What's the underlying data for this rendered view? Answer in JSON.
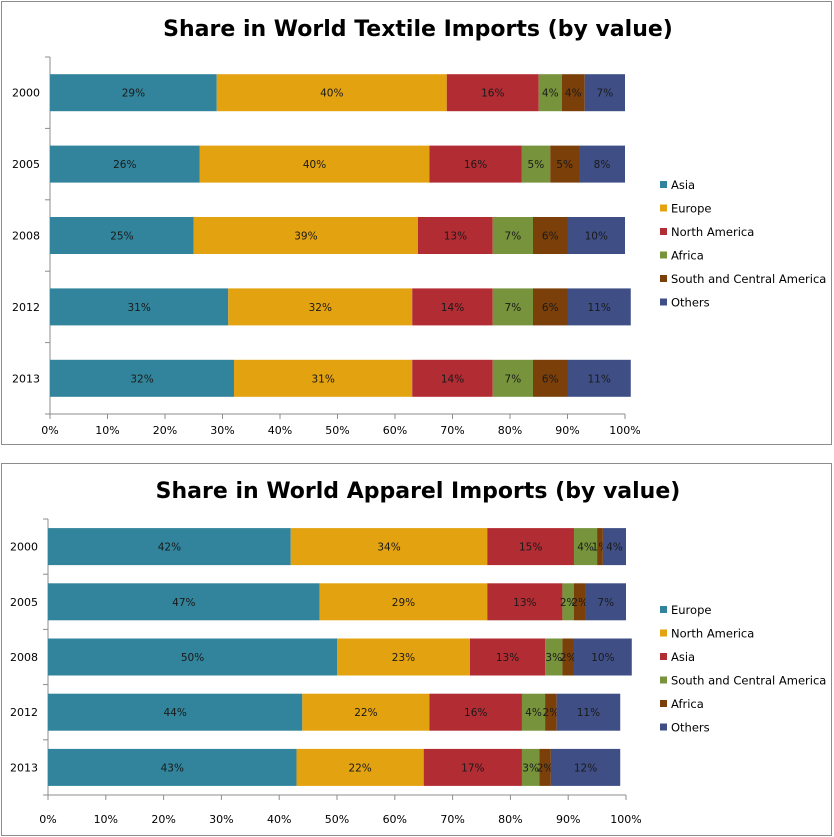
{
  "colors": {
    "teal": "#31849b",
    "gold": "#e3a20f",
    "red": "#b22c33",
    "green": "#77933c",
    "brown": "#7b3f0a",
    "navy": "#3f4f86"
  },
  "chart_data": [
    {
      "type": "bar",
      "orientation": "horizontal",
      "stacked": true,
      "title": "Share in World Textile Imports (by value)",
      "categories": [
        "2000",
        "2005",
        "2008",
        "2012",
        "2013"
      ],
      "xlim": [
        0,
        100
      ],
      "x_ticks": [
        "0%",
        "10%",
        "20%",
        "30%",
        "40%",
        "50%",
        "60%",
        "70%",
        "80%",
        "90%",
        "100%"
      ],
      "legend_position": "right",
      "series": [
        {
          "name": "Asia",
          "color": "#31849b",
          "values": [
            29,
            26,
            25,
            31,
            32
          ],
          "labels": [
            "29%",
            "26%",
            "25%",
            "31%",
            "32%"
          ]
        },
        {
          "name": "Europe",
          "color": "#e3a20f",
          "values": [
            40,
            40,
            39,
            32,
            31
          ],
          "labels": [
            "40%",
            "40%",
            "39%",
            "32%",
            "31%"
          ]
        },
        {
          "name": "North America",
          "color": "#b22c33",
          "values": [
            16,
            16,
            13,
            14,
            14
          ],
          "labels": [
            "16%",
            "16%",
            "13%",
            "14%",
            "14%"
          ]
        },
        {
          "name": "Africa",
          "color": "#77933c",
          "values": [
            4,
            5,
            7,
            7,
            7
          ],
          "labels": [
            "4%",
            "5%",
            "7%",
            "7%",
            "7%"
          ]
        },
        {
          "name": "South and Central America",
          "color": "#7b3f0a",
          "values": [
            4,
            5,
            6,
            6,
            6
          ],
          "labels": [
            "4%",
            "5%",
            "6%",
            "6%",
            "6%"
          ]
        },
        {
          "name": "Others",
          "color": "#3f4f86",
          "values": [
            7,
            8,
            10,
            11,
            11
          ],
          "labels": [
            "7%",
            "8%",
            "10%",
            "11%",
            "11%"
          ]
        }
      ]
    },
    {
      "type": "bar",
      "orientation": "horizontal",
      "stacked": true,
      "title": "Share in World Apparel Imports (by value)",
      "categories": [
        "2000",
        "2005",
        "2008",
        "2012",
        "2013"
      ],
      "xlim": [
        0,
        100
      ],
      "x_ticks": [
        "0%",
        "10%",
        "20%",
        "30%",
        "40%",
        "50%",
        "60%",
        "70%",
        "80%",
        "90%",
        "100%"
      ],
      "legend_position": "right",
      "series": [
        {
          "name": "Europe",
          "color": "#31849b",
          "values": [
            42,
            47,
            50,
            44,
            43
          ],
          "labels": [
            "42%",
            "47%",
            "50%",
            "44%",
            "43%"
          ]
        },
        {
          "name": "North America",
          "color": "#e3a20f",
          "values": [
            34,
            29,
            23,
            22,
            22
          ],
          "labels": [
            "34%",
            "29%",
            "23%",
            "22%",
            "22%"
          ]
        },
        {
          "name": "Asia",
          "color": "#b22c33",
          "values": [
            15,
            13,
            13,
            16,
            17
          ],
          "labels": [
            "15%",
            "13%",
            "13%",
            "16%",
            "17%"
          ]
        },
        {
          "name": "South and Central America",
          "color": "#77933c",
          "values": [
            4,
            2,
            3,
            4,
            3
          ],
          "labels": [
            "4%",
            "2%",
            "3%",
            "4%",
            "3%"
          ]
        },
        {
          "name": "Africa",
          "color": "#7b3f0a",
          "values": [
            1,
            2,
            2,
            2,
            2
          ],
          "labels": [
            "1%",
            "2%",
            "2%",
            "2%",
            "2%"
          ]
        },
        {
          "name": "Others",
          "color": "#3f4f86",
          "values": [
            4,
            7,
            10,
            11,
            12
          ],
          "labels": [
            "4%",
            "7%",
            "10%",
            "11%",
            "12%"
          ]
        }
      ]
    }
  ]
}
